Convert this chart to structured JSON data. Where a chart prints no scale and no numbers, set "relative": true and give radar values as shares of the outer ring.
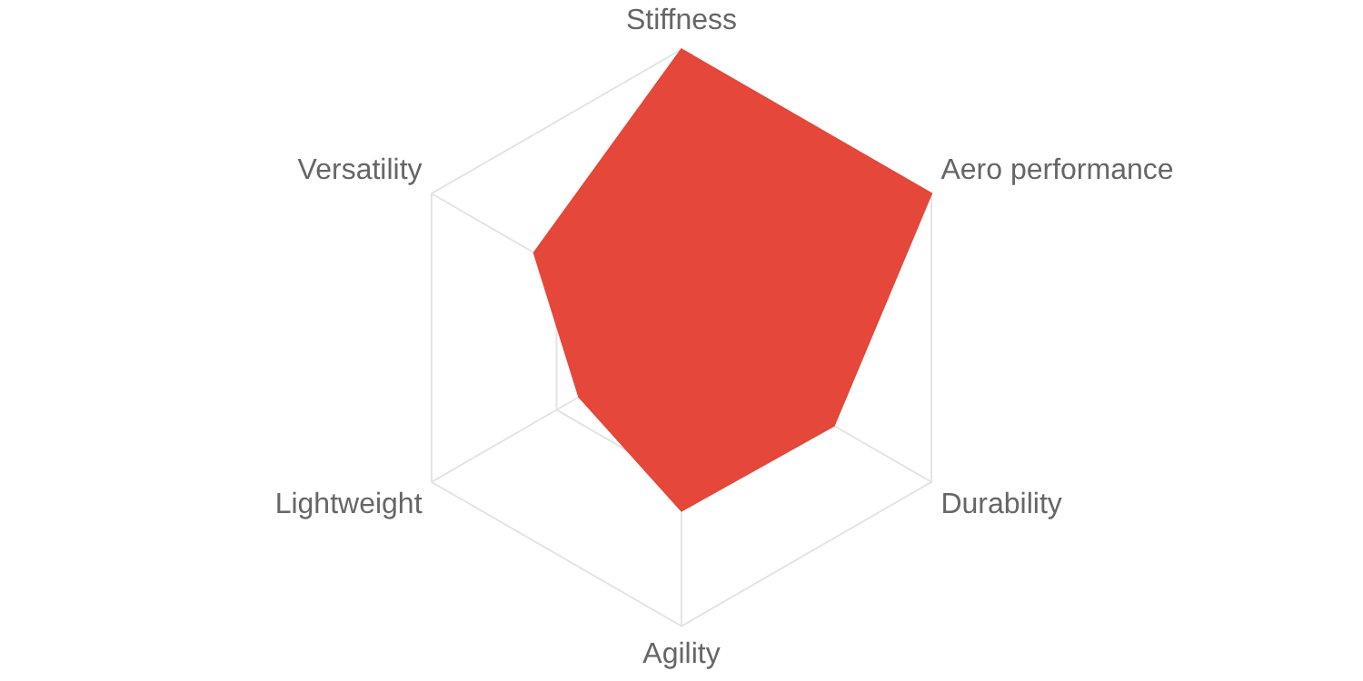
{
  "chart_data": {
    "type": "radar",
    "relative": true,
    "grid": true,
    "legend": false,
    "categories": [
      "Stiffness",
      "Aero performance",
      "Durability",
      "Agility",
      "Lightweight",
      "Versatility"
    ],
    "series": [
      {
        "color": "#e5473a",
        "values": [
          1,
          1,
          0.61,
          0.6,
          0.41,
          0.59
        ]
      }
    ]
  }
}
